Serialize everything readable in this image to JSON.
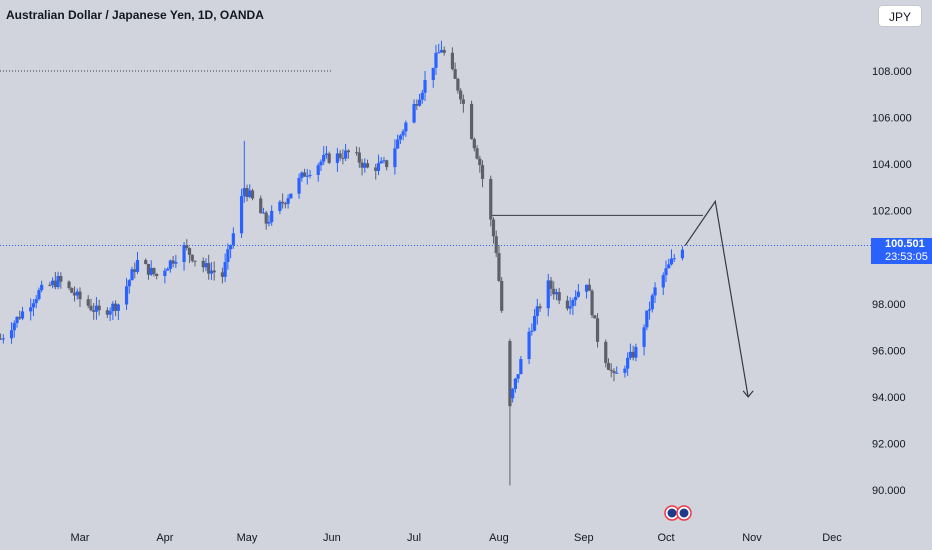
{
  "header": {
    "title": "Australian Dollar / Japanese Yen, 1D, OANDA",
    "currency": "JPY"
  },
  "last_price": {
    "value": "100.501",
    "countdown": "23:53:05"
  },
  "colors": {
    "background": "#d1d4dc",
    "up_candle": "#2962ff",
    "down_candle": "#5d606b",
    "last_price": "#2962ff",
    "annotation": "#363a45"
  },
  "chart_data": {
    "type": "candlestick",
    "title": "Australian Dollar / Japanese Yen, 1D, OANDA",
    "y_axis": {
      "ticks": [
        "108.000",
        "106.000",
        "104.000",
        "102.000",
        "98.000",
        "96.000",
        "94.000",
        "92.000",
        "90.000"
      ],
      "range": [
        89.5,
        110.2
      ]
    },
    "x_axis": {
      "ticks": [
        "Mar",
        "Apr",
        "May",
        "Jun",
        "Jul",
        "Aug",
        "Sep",
        "Oct",
        "Nov",
        "Dec"
      ]
    },
    "series_anchors": [
      {
        "date": "Feb 1",
        "close": 96.5
      },
      {
        "date": "Feb 15",
        "close": 98.5
      },
      {
        "date": "Feb 22",
        "close": 99.0
      },
      {
        "date": "Mar 1",
        "close": 98.2
      },
      {
        "date": "Mar 8",
        "close": 97.6
      },
      {
        "date": "Mar 15",
        "close": 98.0
      },
      {
        "date": "Mar 22",
        "close": 99.8
      },
      {
        "date": "Mar 29",
        "close": 99.2
      },
      {
        "date": "Apr 8",
        "close": 100.4
      },
      {
        "date": "Apr 15",
        "close": 99.6
      },
      {
        "date": "Apr 22",
        "close": 99.2
      },
      {
        "date": "Apr 26",
        "close": 101.0
      },
      {
        "date": "Apr 30",
        "close": 103.0
      },
      {
        "date": "May 8",
        "close": 101.5
      },
      {
        "date": "May 15",
        "close": 102.5
      },
      {
        "date": "May 22",
        "close": 103.6
      },
      {
        "date": "May 29",
        "close": 104.2
      },
      {
        "date": "Jun 8",
        "close": 104.5
      },
      {
        "date": "Jun 14",
        "close": 103.8
      },
      {
        "date": "Jun 21",
        "close": 104.0
      },
      {
        "date": "Jul 1",
        "close": 106.5
      },
      {
        "date": "Jul 8",
        "close": 108.3
      },
      {
        "date": "Jul 11",
        "close": 109.0
      },
      {
        "date": "Jul 18",
        "close": 107.0
      },
      {
        "date": "Jul 25",
        "close": 104.0
      },
      {
        "date": "Jul 31",
        "close": 100.3
      },
      {
        "date": "Aug 5",
        "close": 93.8
      },
      {
        "date": "Aug 12",
        "close": 96.8
      },
      {
        "date": "Aug 19",
        "close": 98.8
      },
      {
        "date": "Aug 26",
        "close": 98.0
      },
      {
        "date": "Sep 2",
        "close": 99.0
      },
      {
        "date": "Sep 6",
        "close": 96.5
      },
      {
        "date": "Sep 12",
        "close": 94.8
      },
      {
        "date": "Sep 20",
        "close": 96.0
      },
      {
        "date": "Sep 27",
        "close": 98.6
      },
      {
        "date": "Oct 3",
        "close": 99.8
      },
      {
        "date": "Oct 7",
        "close": 100.5
      }
    ],
    "horizontal_levels": [
      108.0,
      101.8
    ],
    "last_price": 100.501,
    "projection_path": [
      {
        "date": "Oct 8",
        "price": 100.5
      },
      {
        "date": "Oct 19",
        "price": 102.4
      },
      {
        "date": "Oct 31",
        "price": 94.0
      }
    ]
  }
}
